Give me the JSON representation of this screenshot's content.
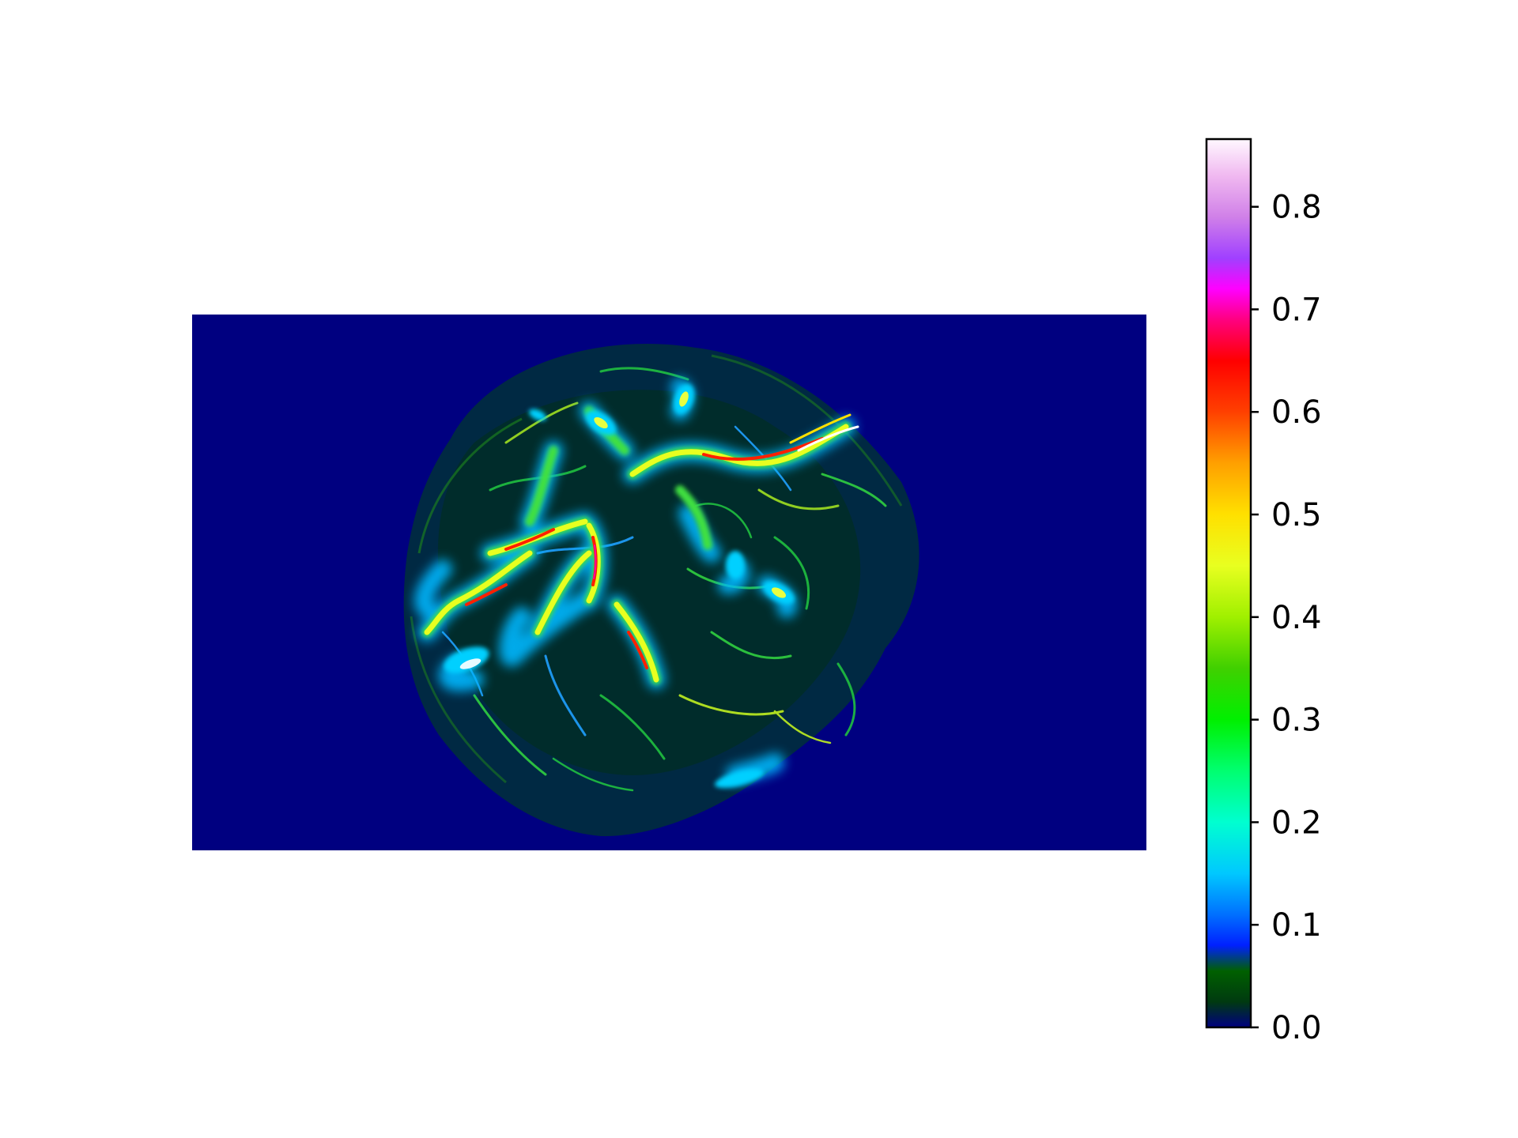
{
  "chart_data": {
    "type": "heatmap",
    "title": "",
    "xlabel": "",
    "ylabel": "",
    "colormap": "gist_ncar",
    "background_color": "#000080",
    "colorbar": {
      "range": [
        0,
        0.866
      ],
      "ticks": [
        0.0,
        0.1,
        0.2,
        0.3,
        0.4,
        0.5,
        0.6,
        0.7,
        0.8
      ],
      "tick_labels": [
        "0.0",
        "0.1",
        "0.2",
        "0.3",
        "0.4",
        "0.5",
        "0.6",
        "0.7",
        "0.8"
      ],
      "stops": [
        {
          "value": 0.0,
          "color": "#000080"
        },
        {
          "value": 0.025,
          "color": "#003a10"
        },
        {
          "value": 0.055,
          "color": "#006000"
        },
        {
          "value": 0.08,
          "color": "#0020ff"
        },
        {
          "value": 0.11,
          "color": "#0070ff"
        },
        {
          "value": 0.15,
          "color": "#00c8ff"
        },
        {
          "value": 0.2,
          "color": "#00ffd0"
        },
        {
          "value": 0.25,
          "color": "#00ff70"
        },
        {
          "value": 0.3,
          "color": "#00f000"
        },
        {
          "value": 0.35,
          "color": "#40d000"
        },
        {
          "value": 0.4,
          "color": "#a0f000"
        },
        {
          "value": 0.45,
          "color": "#e8ff20"
        },
        {
          "value": 0.5,
          "color": "#ffe000"
        },
        {
          "value": 0.55,
          "color": "#ffa000"
        },
        {
          "value": 0.6,
          "color": "#ff4000"
        },
        {
          "value": 0.65,
          "color": "#ff0000"
        },
        {
          "value": 0.69,
          "color": "#ff0080"
        },
        {
          "value": 0.72,
          "color": "#ff00ff"
        },
        {
          "value": 0.75,
          "color": "#a040ff"
        },
        {
          "value": 0.79,
          "color": "#d080e8"
        },
        {
          "value": 0.83,
          "color": "#f0b8f0"
        },
        {
          "value": 0.866,
          "color": "#fff8ff"
        }
      ]
    }
  }
}
